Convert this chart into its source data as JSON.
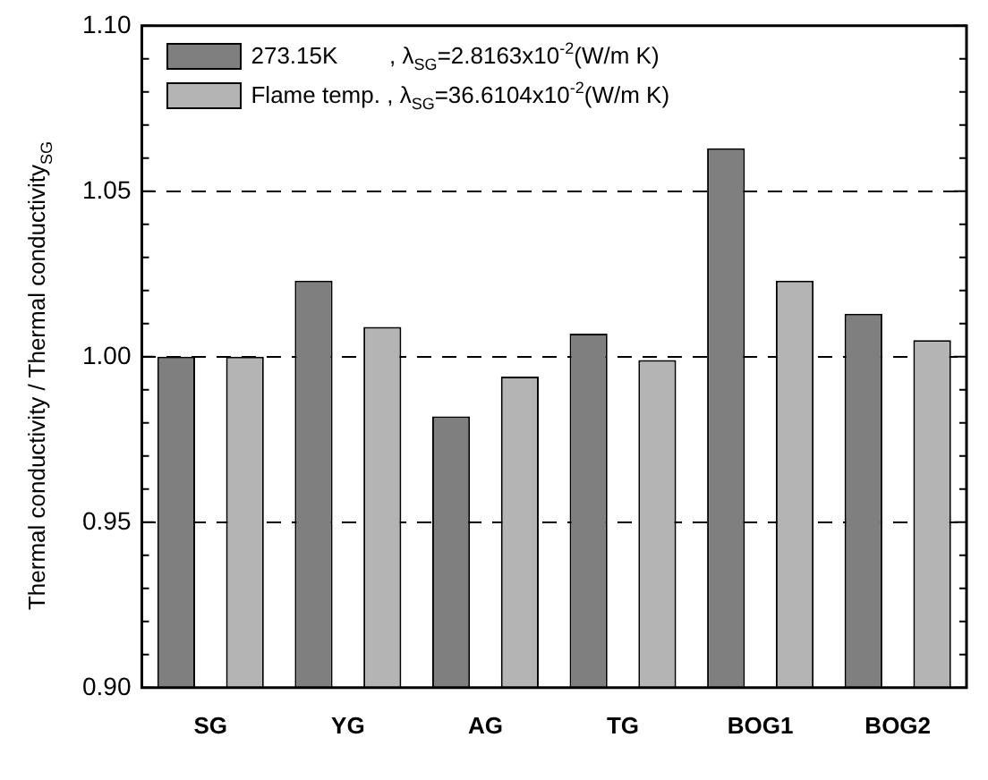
{
  "chart_data": {
    "type": "bar",
    "ylabel": "Thermal conductivity / Thermal conductivity$_{SG}$",
    "categories": [
      "SG",
      "YG",
      "AG",
      "TG",
      "BOG1",
      "BOG2"
    ],
    "series": [
      {
        "name": "273.15K        , λ$_{SG}$=2.8163x10$^{-2}$(W/m K)",
        "color": "#7f7f7f",
        "values": [
          1.0,
          1.023,
          0.982,
          1.007,
          1.063,
          1.013
        ]
      },
      {
        "name": "Flame temp. , λ$_{SG}$=36.6104x10$^{-2}$(W/m K)",
        "color": "#b4b4b4",
        "values": [
          1.0,
          1.009,
          0.994,
          0.999,
          1.023,
          1.005
        ]
      }
    ],
    "ylim": [
      0.9,
      1.1
    ],
    "yticks": [
      {
        "value": 0.9,
        "label": "0.90"
      },
      {
        "value": 0.91,
        "label": null
      },
      {
        "value": 0.92,
        "label": null
      },
      {
        "value": 0.93,
        "label": null
      },
      {
        "value": 0.94,
        "label": null
      },
      {
        "value": 0.95,
        "label": "0.95"
      },
      {
        "value": 0.96,
        "label": null
      },
      {
        "value": 0.97,
        "label": null
      },
      {
        "value": 0.98,
        "label": null
      },
      {
        "value": 0.99,
        "label": null
      },
      {
        "value": 1.0,
        "label": "1.00"
      },
      {
        "value": 1.01,
        "label": null
      },
      {
        "value": 1.02,
        "label": null
      },
      {
        "value": 1.03,
        "label": null
      },
      {
        "value": 1.04,
        "label": null
      },
      {
        "value": 1.05,
        "label": "1.05"
      },
      {
        "value": 1.06,
        "label": null
      },
      {
        "value": 1.07,
        "label": null
      },
      {
        "value": 1.08,
        "label": null
      },
      {
        "value": 1.09,
        "label": null
      },
      {
        "value": 1.1,
        "label": "1.10"
      }
    ],
    "grid": "y",
    "legend": "top left"
  }
}
